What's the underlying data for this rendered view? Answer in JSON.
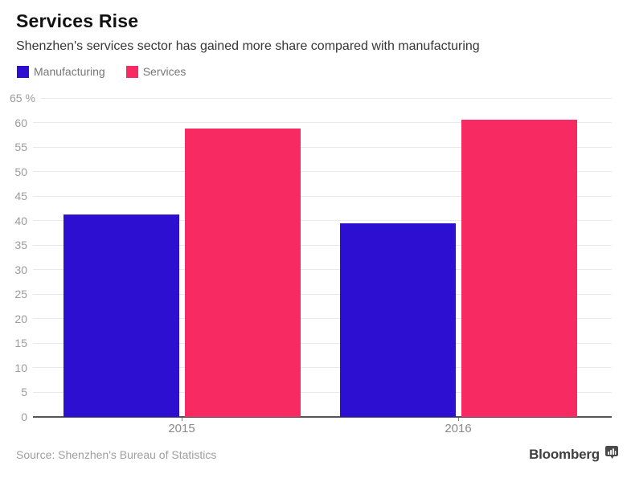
{
  "header": {
    "title": "Services Rise",
    "subtitle": "Shenzhen's services sector has gained more share compared with manufacturing"
  },
  "chart_data": {
    "type": "bar",
    "title": "Services Rise",
    "subtitle": "Shenzhen's services sector has gained more share compared with manufacturing",
    "categories": [
      "2015",
      "2016"
    ],
    "series": [
      {
        "name": "Manufacturing",
        "color": "#2d0fd2",
        "values": [
          41.2,
          39.5
        ]
      },
      {
        "name": "Services",
        "color": "#f72a61",
        "values": [
          58.8,
          60.5
        ]
      }
    ],
    "ylabel": "%",
    "ylim": [
      0,
      65
    ],
    "ytick_step": 5,
    "ytick_top_label": "65 %",
    "grid": true,
    "legend_position": "top-left",
    "gridline_color": "#e9e9e9",
    "axis_color": "#55565a"
  },
  "footer": {
    "source": "Source: Shenzhen's Bureau of Statistics",
    "brand_label": "Bloomberg"
  }
}
